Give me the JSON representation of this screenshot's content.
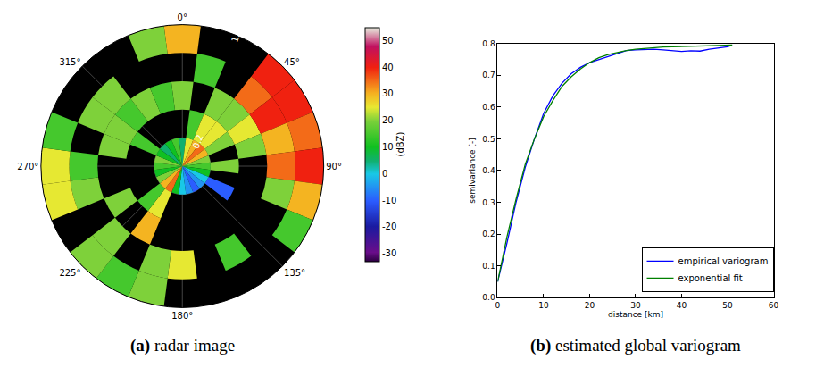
{
  "chart_data": [
    {
      "type": "polar_heatmap",
      "caption": "(a) radar image",
      "thetaticks": [
        {
          "value": 0,
          "label": "0°"
        },
        {
          "value": 45,
          "label": "45°"
        },
        {
          "value": 90,
          "label": "90°"
        },
        {
          "value": 135,
          "label": "135°"
        },
        {
          "value": 180,
          "label": "180°"
        },
        {
          "value": 225,
          "label": "225°"
        },
        {
          "value": 270,
          "label": "270°"
        },
        {
          "value": 315,
          "label": "315°"
        }
      ],
      "rlim": [
        0,
        1
      ],
      "rticks": [
        0.2,
        {
          "value": 1,
          "label": "1.0"
        }
      ],
      "colorbar": {
        "title": "(dBZ)",
        "range": [
          -33,
          55
        ],
        "ticks": [
          -30,
          -20,
          -10,
          0,
          10,
          20,
          30,
          40,
          50
        ]
      },
      "azimuth": [
        0,
        15,
        30,
        45,
        60,
        75,
        90,
        105,
        120,
        135,
        150,
        165,
        180,
        195,
        210,
        225,
        240,
        255,
        270,
        285,
        300,
        315,
        330,
        345
      ],
      "range_bins": [
        0,
        0.2,
        0.4,
        0.6,
        0.8,
        1
      ],
      "reflectivity": [
        [
          5,
          null,
          20,
          null,
          30
        ],
        [
          25,
          15,
          null,
          15,
          null
        ],
        [
          30,
          25,
          20,
          null,
          null
        ],
        [
          35,
          25,
          20,
          35,
          40
        ],
        [
          30,
          20,
          25,
          40,
          40
        ],
        [
          20,
          null,
          20,
          30,
          35
        ],
        [
          15,
          20,
          null,
          35,
          40
        ],
        [
          10,
          null,
          null,
          20,
          30
        ],
        [
          0,
          -10,
          null,
          null,
          15
        ],
        [
          -5,
          null,
          null,
          null,
          null
        ],
        [
          -10,
          null,
          null,
          15,
          null
        ],
        [
          -5,
          null,
          null,
          null,
          null
        ],
        [
          0,
          null,
          null,
          25,
          null
        ],
        [
          10,
          null,
          null,
          20,
          20
        ],
        [
          35,
          25,
          30,
          null,
          15
        ],
        [
          30,
          15,
          null,
          20,
          20
        ],
        [
          20,
          null,
          20,
          null,
          null
        ],
        [
          10,
          null,
          null,
          20,
          25
        ],
        [
          15,
          null,
          null,
          15,
          25
        ],
        [
          20,
          null,
          20,
          null,
          15
        ],
        [
          10,
          15,
          20,
          20,
          null
        ],
        [
          5,
          null,
          15,
          20,
          null
        ],
        [
          10,
          null,
          20,
          null,
          null
        ],
        [
          15,
          null,
          15,
          null,
          20
        ]
      ]
    },
    {
      "type": "line",
      "caption": "(b) estimated global variogram",
      "x_label": "distance [km]",
      "y_label": "semivariance [-]",
      "x": [
        0,
        2,
        4,
        6,
        8,
        10,
        12,
        14,
        16,
        18,
        20,
        22,
        24,
        26,
        28,
        30,
        32,
        34,
        36,
        38,
        40,
        42,
        44,
        46,
        48,
        50,
        51
      ],
      "series": [
        {
          "name": "empirical variogram",
          "color": "#0000ff",
          "values": [
            0.05,
            0.17,
            0.3,
            0.41,
            0.5,
            0.58,
            0.635,
            0.675,
            0.705,
            0.725,
            0.74,
            0.75,
            0.76,
            0.77,
            0.778,
            0.78,
            0.782,
            0.782,
            0.78,
            0.778,
            0.775,
            0.777,
            0.776,
            0.782,
            0.787,
            0.79,
            0.795
          ]
        },
        {
          "name": "exponential fit",
          "color": "#008000",
          "values": [
            0.05,
            0.19,
            0.31,
            0.42,
            0.5,
            0.57,
            0.62,
            0.665,
            0.695,
            0.72,
            0.74,
            0.755,
            0.765,
            0.772,
            0.778,
            0.782,
            0.785,
            0.787,
            0.789,
            0.79,
            0.791,
            0.792,
            0.793,
            0.793,
            0.794,
            0.794,
            0.795
          ]
        }
      ],
      "xlim": [
        0,
        60
      ],
      "xticks": [
        0,
        10,
        20,
        30,
        40,
        50,
        60
      ],
      "ylim": [
        0,
        0.8
      ],
      "yticks": [
        {
          "value": 0,
          "label": "0.0"
        },
        0.1,
        0.2,
        0.3,
        0.4,
        0.5,
        0.6,
        0.7,
        0.8
      ],
      "grid": false,
      "legend": "lower right"
    }
  ]
}
